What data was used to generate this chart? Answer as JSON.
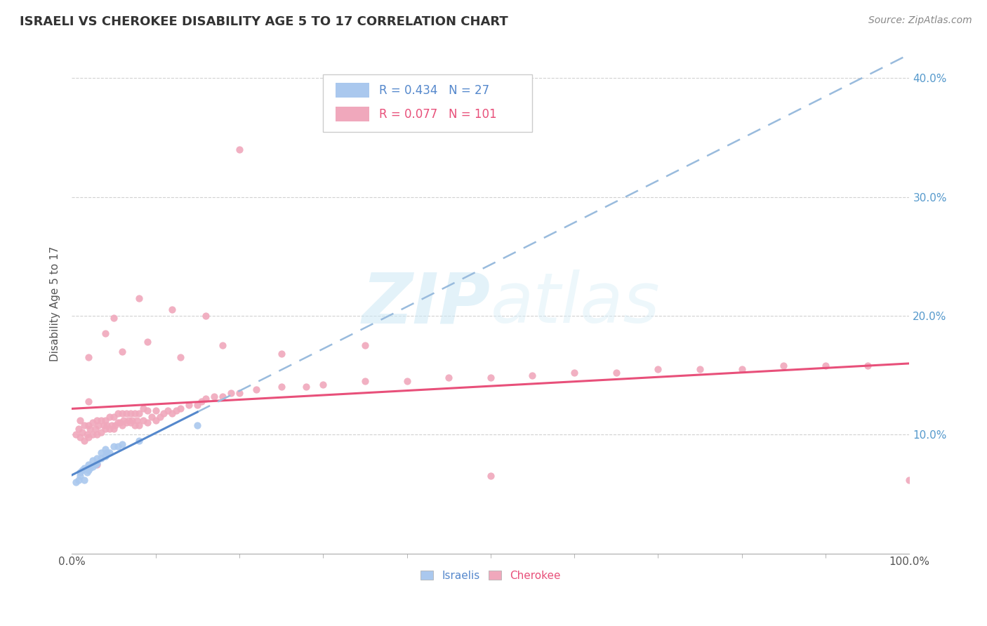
{
  "title": "ISRAELI VS CHEROKEE DISABILITY AGE 5 TO 17 CORRELATION CHART",
  "source_text": "Source: ZipAtlas.com",
  "ylabel": "Disability Age 5 to 17",
  "watermark": "ZIPatlas",
  "legend_israelis": "Israelis",
  "legend_cherokee": "Cherokee",
  "R_israelis": 0.434,
  "N_israelis": 27,
  "R_cherokee": 0.077,
  "N_cherokee": 101,
  "xlim": [
    0,
    1.0
  ],
  "ylim": [
    0,
    0.42
  ],
  "yticks": [
    0.1,
    0.2,
    0.3,
    0.4
  ],
  "color_israeli": "#aac8ee",
  "color_cherokee": "#f0a8bc",
  "trend_israeli_color": "#5588cc",
  "trend_cherokee_color": "#e8507a",
  "trend_israeli_dashed_color": "#99bbdd",
  "israeli_x": [
    0.005,
    0.008,
    0.01,
    0.01,
    0.012,
    0.015,
    0.015,
    0.018,
    0.02,
    0.02,
    0.022,
    0.025,
    0.025,
    0.028,
    0.03,
    0.03,
    0.035,
    0.035,
    0.04,
    0.04,
    0.042,
    0.045,
    0.05,
    0.055,
    0.06,
    0.08,
    0.15
  ],
  "israeli_y": [
    0.06,
    0.062,
    0.065,
    0.068,
    0.07,
    0.062,
    0.072,
    0.068,
    0.07,
    0.075,
    0.072,
    0.073,
    0.078,
    0.075,
    0.076,
    0.08,
    0.08,
    0.085,
    0.082,
    0.088,
    0.085,
    0.085,
    0.09,
    0.09,
    0.092,
    0.095,
    0.108
  ],
  "cherokee_x": [
    0.005,
    0.008,
    0.01,
    0.01,
    0.012,
    0.015,
    0.015,
    0.018,
    0.02,
    0.02,
    0.022,
    0.025,
    0.025,
    0.028,
    0.03,
    0.03,
    0.032,
    0.035,
    0.035,
    0.038,
    0.04,
    0.04,
    0.042,
    0.045,
    0.045,
    0.048,
    0.05,
    0.05,
    0.052,
    0.055,
    0.055,
    0.058,
    0.06,
    0.06,
    0.062,
    0.065,
    0.065,
    0.068,
    0.07,
    0.07,
    0.072,
    0.075,
    0.075,
    0.078,
    0.08,
    0.08,
    0.085,
    0.085,
    0.09,
    0.09,
    0.095,
    0.1,
    0.1,
    0.105,
    0.11,
    0.115,
    0.12,
    0.125,
    0.13,
    0.14,
    0.15,
    0.155,
    0.16,
    0.17,
    0.18,
    0.19,
    0.2,
    0.22,
    0.25,
    0.28,
    0.3,
    0.35,
    0.4,
    0.45,
    0.5,
    0.55,
    0.6,
    0.65,
    0.7,
    0.75,
    0.8,
    0.85,
    0.9,
    0.95,
    1.0,
    0.02,
    0.05,
    0.08,
    0.12,
    0.16,
    0.2,
    0.02,
    0.03,
    0.04,
    0.06,
    0.09,
    0.13,
    0.18,
    0.25,
    0.35,
    0.5
  ],
  "cherokee_y": [
    0.1,
    0.105,
    0.098,
    0.112,
    0.102,
    0.095,
    0.108,
    0.1,
    0.098,
    0.108,
    0.105,
    0.1,
    0.11,
    0.105,
    0.1,
    0.112,
    0.108,
    0.102,
    0.112,
    0.108,
    0.105,
    0.112,
    0.108,
    0.105,
    0.115,
    0.108,
    0.105,
    0.115,
    0.108,
    0.11,
    0.118,
    0.11,
    0.108,
    0.118,
    0.112,
    0.11,
    0.118,
    0.112,
    0.11,
    0.118,
    0.112,
    0.108,
    0.118,
    0.112,
    0.108,
    0.118,
    0.112,
    0.122,
    0.11,
    0.12,
    0.115,
    0.112,
    0.12,
    0.115,
    0.118,
    0.12,
    0.118,
    0.12,
    0.122,
    0.125,
    0.125,
    0.128,
    0.13,
    0.132,
    0.132,
    0.135,
    0.135,
    0.138,
    0.14,
    0.14,
    0.142,
    0.145,
    0.145,
    0.148,
    0.148,
    0.15,
    0.152,
    0.152,
    0.155,
    0.155,
    0.155,
    0.158,
    0.158,
    0.158,
    0.062,
    0.165,
    0.198,
    0.215,
    0.205,
    0.2,
    0.34,
    0.128,
    0.075,
    0.185,
    0.17,
    0.178,
    0.165,
    0.175,
    0.168,
    0.175,
    0.065
  ]
}
